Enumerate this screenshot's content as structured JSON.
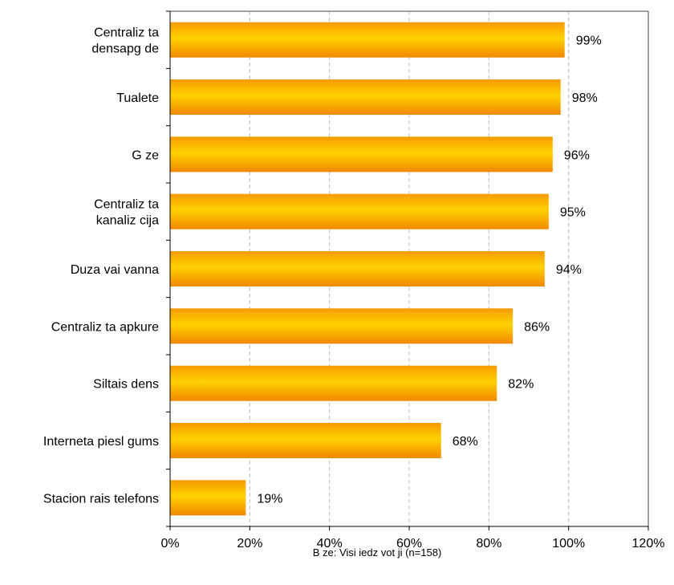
{
  "chart_data": {
    "type": "bar",
    "orientation": "horizontal",
    "categories": [
      [
        "Centraliz  ta",
        "densapg  de"
      ],
      [
        "Tualete"
      ],
      [
        "G  ze"
      ],
      [
        "Centraliz  ta",
        "kanaliz  cija"
      ],
      [
        "Duza vai vanna"
      ],
      [
        "Centraliz  ta apkure"
      ],
      [
        "Siltais   dens"
      ],
      [
        "Interneta piesl  gums"
      ],
      [
        "Stacion  rais telefons"
      ]
    ],
    "values": [
      99,
      98,
      96,
      95,
      94,
      86,
      82,
      68,
      19
    ],
    "value_labels": [
      "99%",
      "98%",
      "96%",
      "95%",
      "94%",
      "86%",
      "82%",
      "68%",
      "19%"
    ],
    "xlim": [
      0,
      120
    ],
    "x_ticks": [
      0,
      20,
      40,
      60,
      80,
      100,
      120
    ],
    "x_tick_labels": [
      "0%",
      "20%",
      "40%",
      "60%",
      "80%",
      "100%",
      "120%"
    ],
    "grid": "vertical dashed",
    "colors": {
      "bar_dark": "#f08c00",
      "bar_light": "#ffd000",
      "grid": "#bdbdbd",
      "frame": "#808080"
    }
  },
  "footnote": "B  ze: Visi iedz  vot  ji (n=158)"
}
